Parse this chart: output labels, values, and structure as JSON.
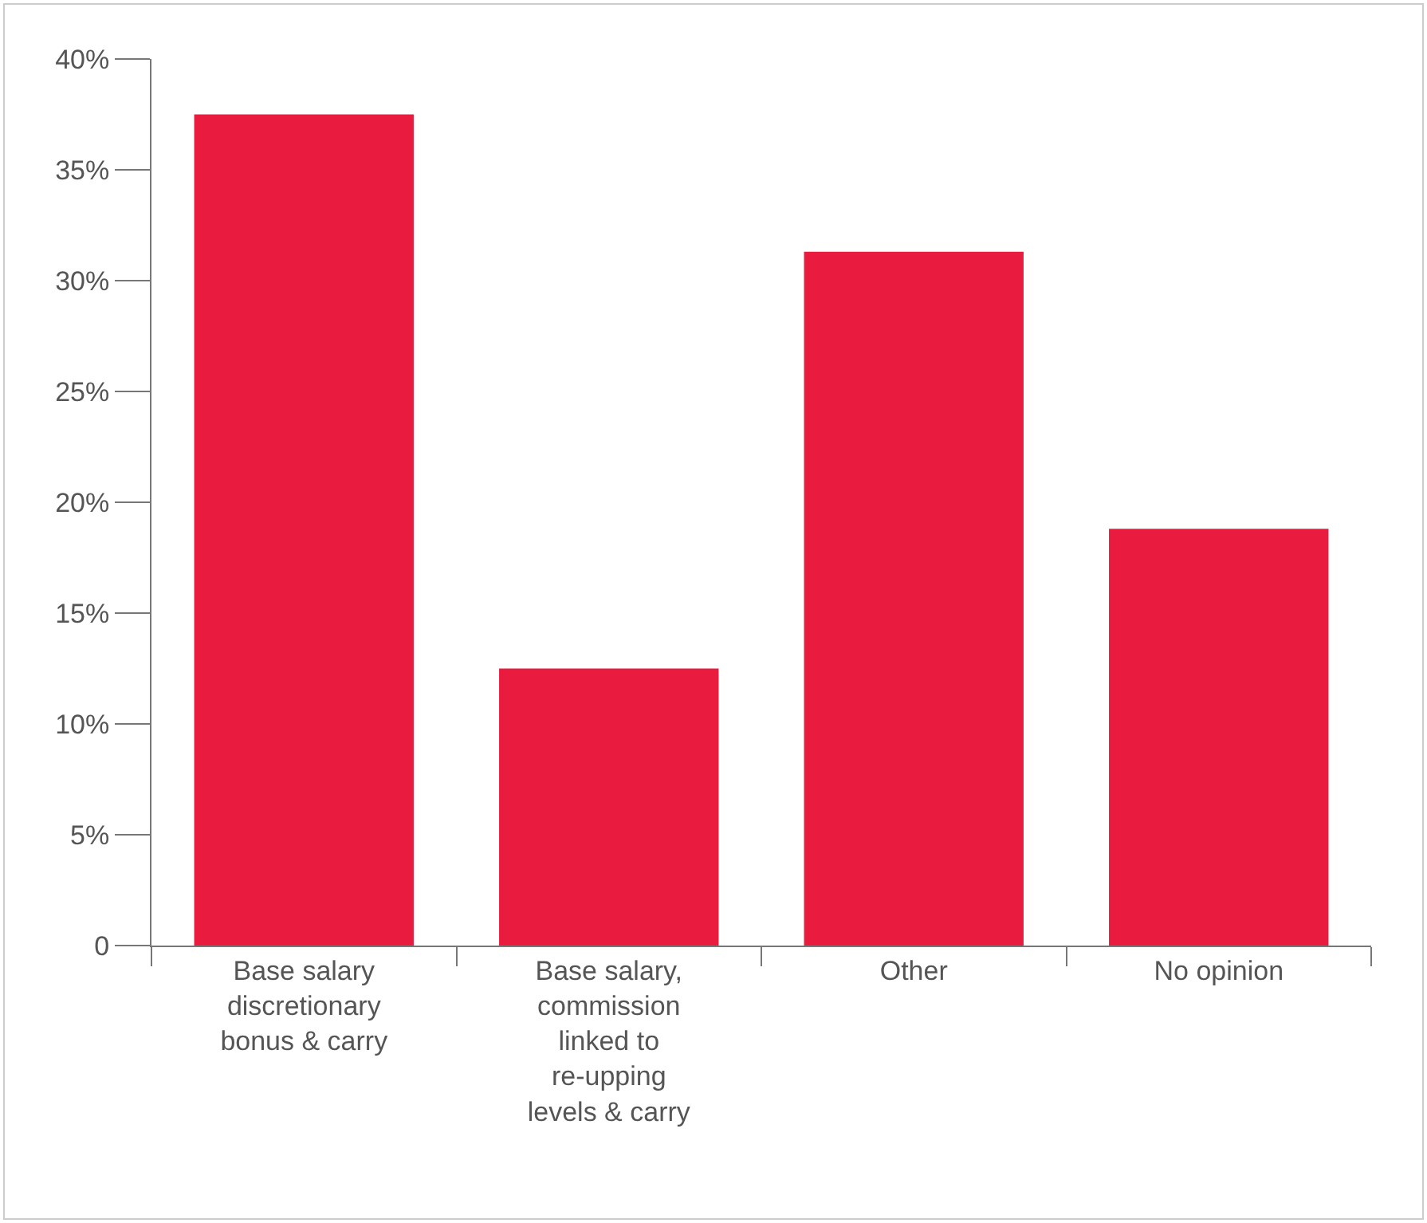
{
  "chart_data": {
    "type": "bar",
    "categories": [
      "Base salary discretionary bonus & carry",
      "Base salary, commission linked to re-upping levels & carry",
      "Other",
      "No opinion"
    ],
    "values": [
      37.5,
      12.5,
      31.3,
      18.8
    ],
    "color": "#e91c3f",
    "ylim": [
      0,
      40
    ],
    "yticks": [
      0,
      {
        "value": 5,
        "label": "5%"
      },
      {
        "value": 10,
        "label": "10%"
      },
      {
        "value": 15,
        "label": "15%"
      },
      {
        "value": 20,
        "label": "20%"
      },
      {
        "value": 25,
        "label": "25%"
      },
      {
        "value": 30,
        "label": "30%"
      },
      {
        "value": 35,
        "label": "35%"
      },
      {
        "value": 40,
        "label": "40%"
      }
    ],
    "grid": false,
    "legend": false
  }
}
